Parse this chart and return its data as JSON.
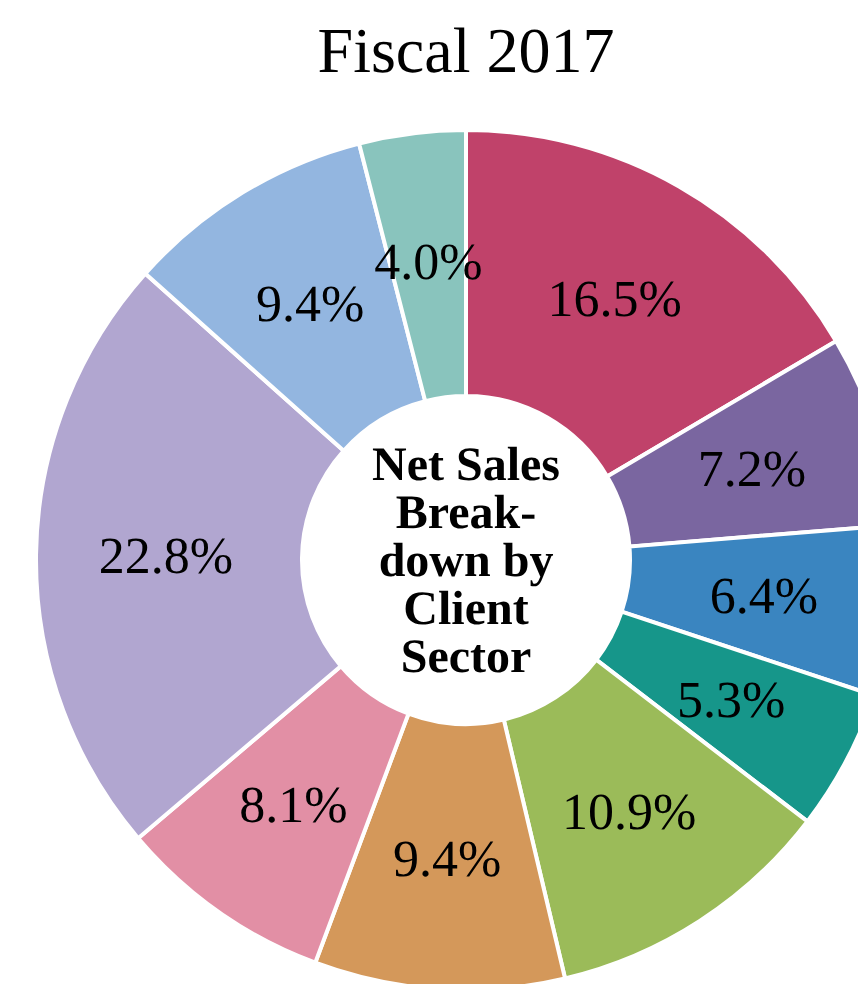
{
  "chart_data": {
    "type": "donut",
    "title": "Fiscal 2017",
    "categories": [
      null,
      null,
      null,
      null,
      null,
      null,
      null,
      null,
      null,
      null
    ],
    "values": [
      16.5,
      7.2,
      6.4,
      5.3,
      10.9,
      9.4,
      8.1,
      22.8,
      9.4,
      4.0
    ],
    "value_labels": [
      "16.5%",
      "7.2%",
      "6.4%",
      "5.3%",
      "10.9%",
      "9.4%",
      "8.1%",
      "22.8%",
      "9.4%",
      "4.0%"
    ],
    "colors": [
      "#c0426a",
      "#7a66a0",
      "#3a85c0",
      "#16968a",
      "#9bbb59",
      "#d4985a",
      "#e28fa5",
      "#b1a6d0",
      "#93b6e0",
      "#89c4bd"
    ],
    "annotations": [
      "Net Sales\nBreak-\ndown by\nClient\nSector"
    ]
  }
}
